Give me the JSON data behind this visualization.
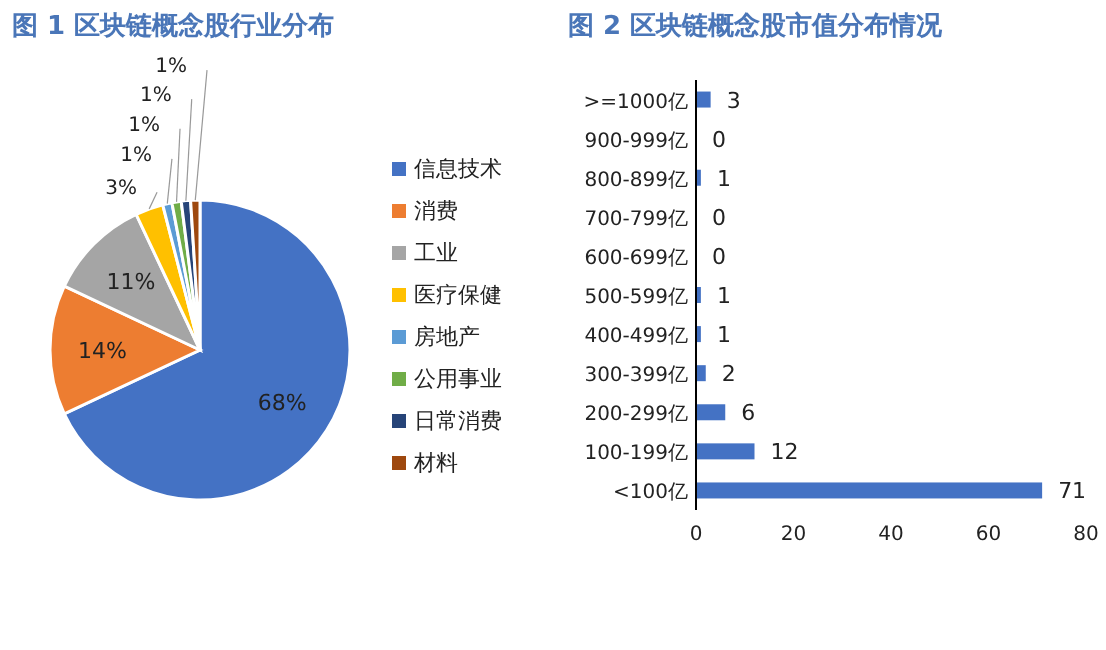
{
  "chart_data": [
    {
      "type": "pie",
      "title": "图 1 区块链概念股行业分布",
      "categories": [
        "信息技术",
        "消费",
        "工业",
        "医疗保健",
        "房地产",
        "公用事业",
        "日常消费",
        "材料"
      ],
      "values": [
        68,
        14,
        11,
        3,
        1,
        1,
        1,
        1
      ],
      "colors": [
        "#4472c4",
        "#ed7d31",
        "#a5a5a5",
        "#ffc000",
        "#5b9bd5",
        "#70ad47",
        "#264478",
        "#9e480e"
      ],
      "value_labels": [
        "68%",
        "14%",
        "11%",
        "3%",
        "1%",
        "1%",
        "1%",
        "1%"
      ],
      "legend": "right"
    },
    {
      "type": "bar",
      "orientation": "horizontal",
      "title": "图 2 区块链概念股市值分布情况",
      "categories": [
        ">=1000亿",
        "900-999亿",
        "800-899亿",
        "700-799亿",
        "600-699亿",
        "500-599亿",
        "400-499亿",
        "300-399亿",
        "200-299亿",
        "100-199亿",
        "<100亿"
      ],
      "values": [
        3,
        0,
        1,
        0,
        0,
        1,
        1,
        2,
        6,
        12,
        71
      ],
      "color": "#4472c4",
      "xlim": [
        0,
        80
      ],
      "xticks": [
        0,
        20,
        40,
        60,
        80
      ],
      "data_labels": true,
      "grid": false
    }
  ]
}
